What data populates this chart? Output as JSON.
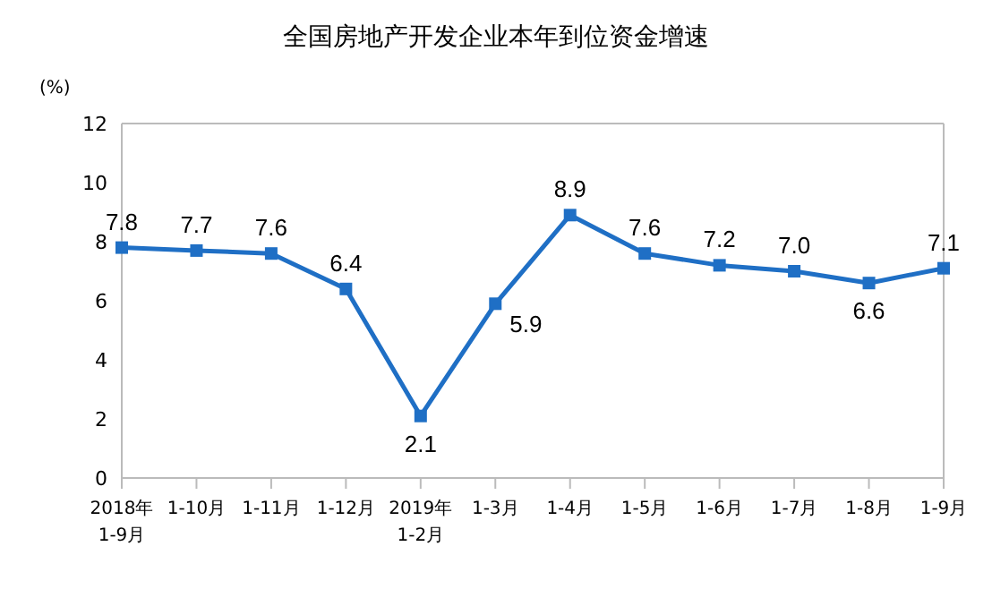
{
  "chart_data": {
    "type": "line",
    "title": "全国房地产开发企业本年到位资金增速",
    "ylabel": "(%)",
    "categories": [
      "2018年\n1-9月",
      "1-10月",
      "1-11月",
      "1-12月",
      "2019年\n1-2月",
      "1-3月",
      "1-4月",
      "1-5月",
      "1-6月",
      "1-7月",
      "1-8月",
      "1-9月"
    ],
    "series": [
      {
        "color": "#1f6fc5",
        "values": [
          7.8,
          7.7,
          7.6,
          6.4,
          2.1,
          5.9,
          8.9,
          7.6,
          7.2,
          7.0,
          6.6,
          7.1
        ],
        "value_labels": [
          "7.8",
          "7.7",
          "7.6",
          "6.4",
          "2.1",
          "5.9",
          "8.9",
          "7.6",
          "7.2",
          "7.0",
          "6.6",
          "7.1"
        ]
      }
    ],
    "ylim": [
      0,
      12
    ],
    "yticks": [
      0,
      2,
      4,
      6,
      8,
      10,
      12
    ],
    "marker": "square",
    "grid": false,
    "legend": false,
    "line_style": "solid"
  }
}
